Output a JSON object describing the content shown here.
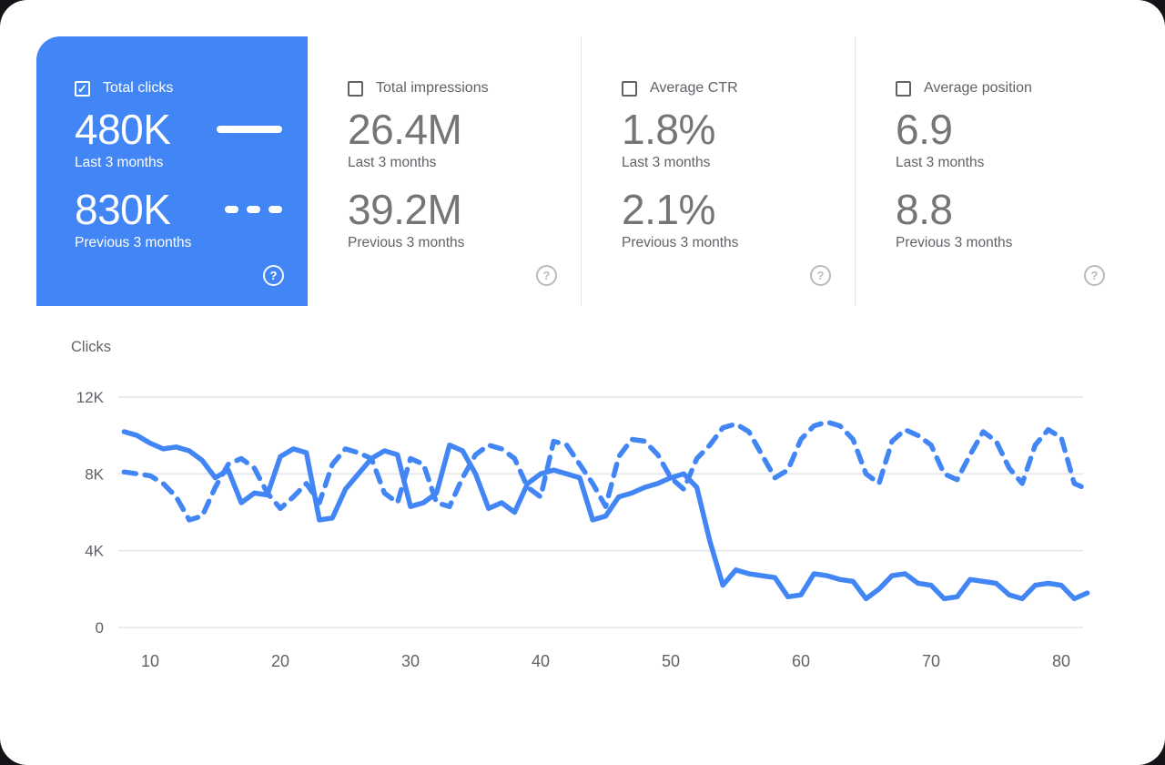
{
  "icons": {
    "check_glyph": "✓",
    "help_glyph": "?"
  },
  "colors": {
    "selected_card_bg": "#4285f4",
    "line_color": "#4285f4",
    "grid_color": "#e8eaed",
    "axis_text": "#5f6368",
    "number_text": "#757575",
    "label_text": "#5f6368"
  },
  "cards": [
    {
      "label": "Total clicks",
      "checked": true,
      "selected": true,
      "primary_value": "480K",
      "primary_caption": "Last 3 months",
      "secondary_value": "830K",
      "secondary_caption": "Previous 3 months"
    },
    {
      "label": "Total impressions",
      "checked": false,
      "selected": false,
      "primary_value": "26.4M",
      "primary_caption": "Last 3 months",
      "secondary_value": "39.2M",
      "secondary_caption": "Previous 3 months"
    },
    {
      "label": "Average CTR",
      "checked": false,
      "selected": false,
      "primary_value": "1.8%",
      "primary_caption": "Last 3 months",
      "secondary_value": "2.1%",
      "secondary_caption": "Previous 3 months"
    },
    {
      "label": "Average position",
      "checked": false,
      "selected": false,
      "primary_value": "6.9",
      "primary_caption": "Last 3 months",
      "secondary_value": "8.8",
      "secondary_caption": "Previous 3 months"
    }
  ],
  "chart_data": {
    "type": "line",
    "title": "Clicks",
    "unit": "thousands of clicks",
    "line_color": "#4285f4",
    "grid_color": "#e8eaed",
    "axis_text_color": "#5f6368",
    "ylim": [
      0,
      12
    ],
    "y_ticks": [
      0,
      4,
      8,
      12
    ],
    "y_tick_labels": [
      "0",
      "4K",
      "8K",
      "12K"
    ],
    "x_ticks": [
      10,
      20,
      30,
      40,
      50,
      60,
      70,
      80
    ],
    "legend_position": "none",
    "grid": true,
    "x": [
      8,
      9,
      10,
      11,
      12,
      13,
      14,
      15,
      16,
      17,
      18,
      19,
      20,
      21,
      22,
      23,
      24,
      25,
      26,
      27,
      28,
      29,
      30,
      31,
      32,
      33,
      34,
      35,
      36,
      37,
      38,
      39,
      40,
      41,
      42,
      43,
      44,
      45,
      46,
      47,
      48,
      49,
      50,
      51,
      52,
      53,
      54,
      55,
      56,
      57,
      58,
      59,
      60,
      61,
      62,
      63,
      64,
      65,
      66,
      67,
      68,
      69,
      70,
      71,
      72,
      73,
      74,
      75,
      76,
      77,
      78,
      79,
      80,
      81,
      82
    ],
    "series": [
      {
        "name": "Last 3 months",
        "style": "solid",
        "values": [
          10.2,
          10.0,
          9.6,
          9.3,
          9.4,
          9.2,
          8.7,
          7.8,
          8.2,
          6.5,
          7.0,
          6.9,
          8.9,
          9.3,
          9.1,
          5.6,
          5.7,
          7.2,
          8.0,
          8.8,
          9.2,
          9.0,
          6.3,
          6.5,
          7.0,
          9.5,
          9.2,
          8.0,
          6.2,
          6.5,
          6.0,
          7.5,
          8.0,
          8.2,
          8.0,
          7.8,
          5.6,
          5.8,
          6.8,
          7.0,
          7.3,
          7.5,
          7.8,
          8.0,
          7.3,
          4.5,
          2.2,
          3.0,
          2.8,
          2.7,
          2.6,
          1.6,
          1.7,
          2.8,
          2.7,
          2.5,
          2.4,
          1.5,
          2.0,
          2.7,
          2.8,
          2.3,
          2.2,
          1.5,
          1.6,
          2.5,
          2.4,
          2.3,
          1.7,
          1.5,
          2.2,
          2.3,
          2.2,
          1.5,
          1.8
        ]
      },
      {
        "name": "Previous 3 months",
        "style": "dashed",
        "values": [
          8.1,
          8.0,
          7.9,
          7.5,
          6.8,
          5.6,
          5.8,
          7.3,
          8.5,
          8.8,
          8.3,
          7.0,
          6.2,
          6.8,
          7.5,
          6.5,
          8.5,
          9.3,
          9.1,
          8.8,
          7.0,
          6.5,
          8.8,
          8.5,
          6.5,
          6.3,
          7.8,
          9.0,
          9.5,
          9.3,
          8.8,
          7.3,
          6.8,
          9.7,
          9.5,
          8.5,
          7.5,
          6.3,
          8.9,
          9.8,
          9.7,
          9.0,
          7.8,
          7.2,
          8.8,
          9.5,
          10.4,
          10.6,
          10.2,
          9.0,
          7.8,
          8.2,
          9.8,
          10.5,
          10.7,
          10.5,
          9.8,
          8.0,
          7.5,
          9.7,
          10.3,
          10.0,
          9.5,
          8.0,
          7.7,
          9.0,
          10.2,
          9.7,
          8.3,
          7.5,
          9.5,
          10.3,
          9.9,
          7.5,
          7.2
        ]
      }
    ]
  }
}
